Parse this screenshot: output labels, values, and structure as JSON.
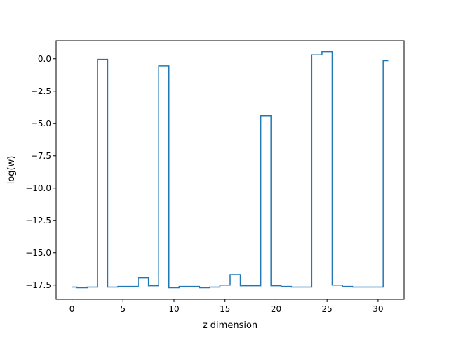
{
  "chart_data": {
    "type": "line",
    "drawstyle": "steps-mid",
    "title": "",
    "xlabel": "z dimension",
    "ylabel": "log(w)",
    "xlim": [
      -1.55,
      32.55
    ],
    "ylim": [
      -18.6,
      1.4
    ],
    "grid": false,
    "legend": "none",
    "color": "#1f77b4",
    "x_ticks": [
      0,
      5,
      10,
      15,
      20,
      25,
      30
    ],
    "x_tick_labels": [
      "0",
      "5",
      "10",
      "15",
      "20",
      "25",
      "30"
    ],
    "y_ticks": [
      0.0,
      -2.5,
      -5.0,
      -7.5,
      -10.0,
      -12.5,
      -15.0,
      -17.5
    ],
    "y_tick_labels": [
      "0.0",
      "−2.5",
      "−5.0",
      "−7.5",
      "−10.0",
      "−12.5",
      "−15.0",
      "−17.5"
    ],
    "series": [
      {
        "x": [
          0,
          1,
          2,
          3,
          4,
          5,
          6,
          7,
          8,
          9,
          10,
          11,
          12,
          13,
          14,
          15,
          16,
          17,
          18,
          19,
          20,
          21,
          22,
          23,
          24,
          25,
          26,
          27,
          28,
          29,
          30,
          31
        ],
        "values": [
          -17.65,
          -17.7,
          -17.65,
          -0.05,
          -17.65,
          -17.6,
          -17.6,
          -16.95,
          -17.55,
          -0.55,
          -17.7,
          -17.6,
          -17.6,
          -17.7,
          -17.65,
          -17.5,
          -16.7,
          -17.55,
          -17.55,
          -4.4,
          -17.55,
          -17.6,
          -17.65,
          -17.65,
          0.3,
          0.55,
          -17.5,
          -17.6,
          -17.65,
          -17.65,
          -17.65,
          -0.15
        ]
      }
    ]
  }
}
